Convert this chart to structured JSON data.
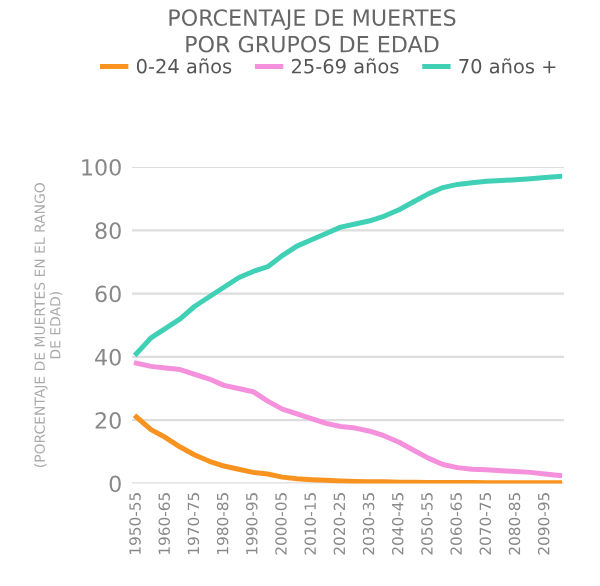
{
  "chart_data": {
    "type": "line",
    "title": "PORCENTAJE DE MUERTES\nPOR GRUPOS DE EDAD",
    "ylabel": "(PORCENTAJE DE MUERTES EN EL RANGO\nDE EDAD)",
    "categories": [
      "1950-55",
      null,
      "1960-65",
      null,
      "1970-75",
      null,
      "1980-85",
      null,
      "1990-95",
      null,
      "2000-05",
      null,
      "2010-15",
      null,
      "2020-25",
      null,
      "2030-35",
      null,
      "2040-45",
      null,
      "2050-55",
      null,
      "2060-65",
      null,
      "2070-75",
      null,
      "2080-85",
      null,
      "2090-95",
      null
    ],
    "series": [
      {
        "name": "0-24 años",
        "color": "#f7931e",
        "values": [
          21,
          17,
          14.5,
          11.5,
          9,
          7,
          5.5,
          4.5,
          3.5,
          3,
          2,
          1.5,
          1.2,
          1,
          0.8,
          0.6,
          0.5,
          0.5,
          0.4,
          0.4,
          0.3,
          0.3,
          0.3,
          0.3,
          0.2,
          0.2,
          0.2,
          0.2,
          0.2,
          0.2
        ]
      },
      {
        "name": "25-69 años",
        "color": "#f590dc",
        "values": [
          38,
          37,
          36.5,
          36,
          34.5,
          33,
          31,
          30,
          29,
          26,
          23.5,
          22,
          20.5,
          19,
          18,
          17.5,
          16.5,
          15,
          13,
          10.5,
          8,
          6,
          5,
          4.5,
          4.3,
          4,
          3.8,
          3.5,
          3,
          2.5
        ]
      },
      {
        "name": "70 años +",
        "color": "#3fd0b6",
        "values": [
          41,
          46,
          49,
          52,
          56,
          59,
          62,
          65,
          67,
          68.5,
          72,
          75,
          77,
          79,
          81,
          82,
          83,
          84.5,
          86.5,
          89,
          91.5,
          93.5,
          94.5,
          95,
          95.5,
          95.7,
          96,
          96.3,
          96.7,
          97
        ]
      }
    ],
    "ylim": [
      0,
      100
    ],
    "yticks": [
      0,
      20,
      40,
      60,
      80,
      100
    ],
    "grid": "y",
    "legend": "top",
    "marker": "none",
    "line_style": "solid"
  }
}
